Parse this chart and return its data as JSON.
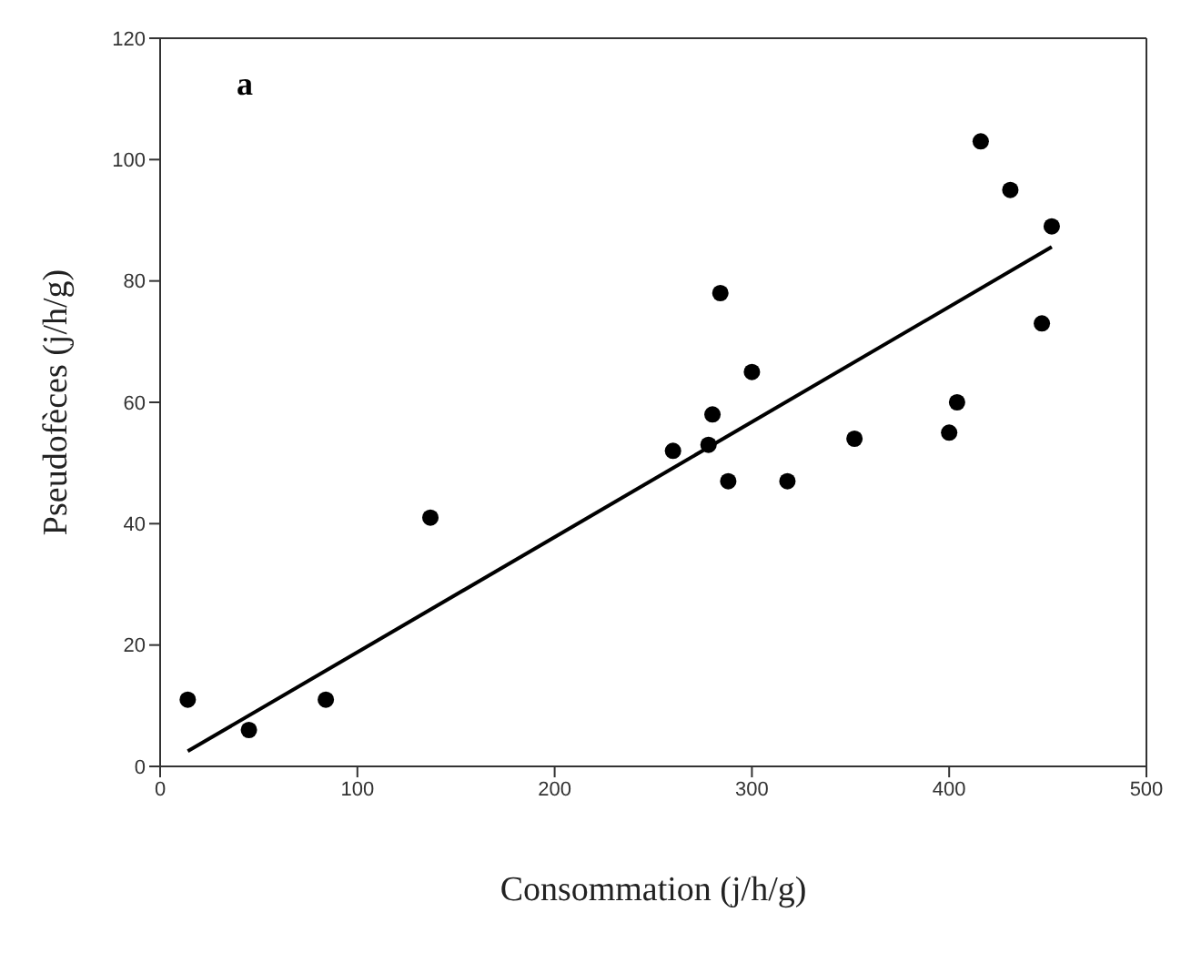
{
  "chart_data": {
    "type": "scatter",
    "xlabel": "Consommation (j/h/g)",
    "ylabel": "Pseudofèces (j/h/g)",
    "annotations": [
      "a"
    ],
    "xlim": [
      0,
      500
    ],
    "xticks": [
      0,
      100,
      200,
      300,
      400,
      500
    ],
    "ylim": [
      0,
      120
    ],
    "yticks": [
      0,
      20,
      40,
      60,
      80,
      100,
      120
    ],
    "grid": false,
    "legend": false,
    "marker": "circle",
    "series": [
      {
        "color": "#000000",
        "x": [
          14,
          45,
          84,
          137,
          260,
          278,
          280,
          284,
          288,
          300,
          318,
          352,
          400,
          404,
          416,
          431,
          447,
          452
        ],
        "values": [
          11,
          6,
          11,
          41,
          52,
          53,
          58,
          78,
          47,
          65,
          47,
          54,
          55,
          60,
          103,
          95,
          73,
          89
        ]
      },
      {
        "type": "line",
        "color": "#000000",
        "marker": "none",
        "x": [
          14,
          452
        ],
        "values": [
          2.5,
          85.6
        ]
      }
    ]
  }
}
